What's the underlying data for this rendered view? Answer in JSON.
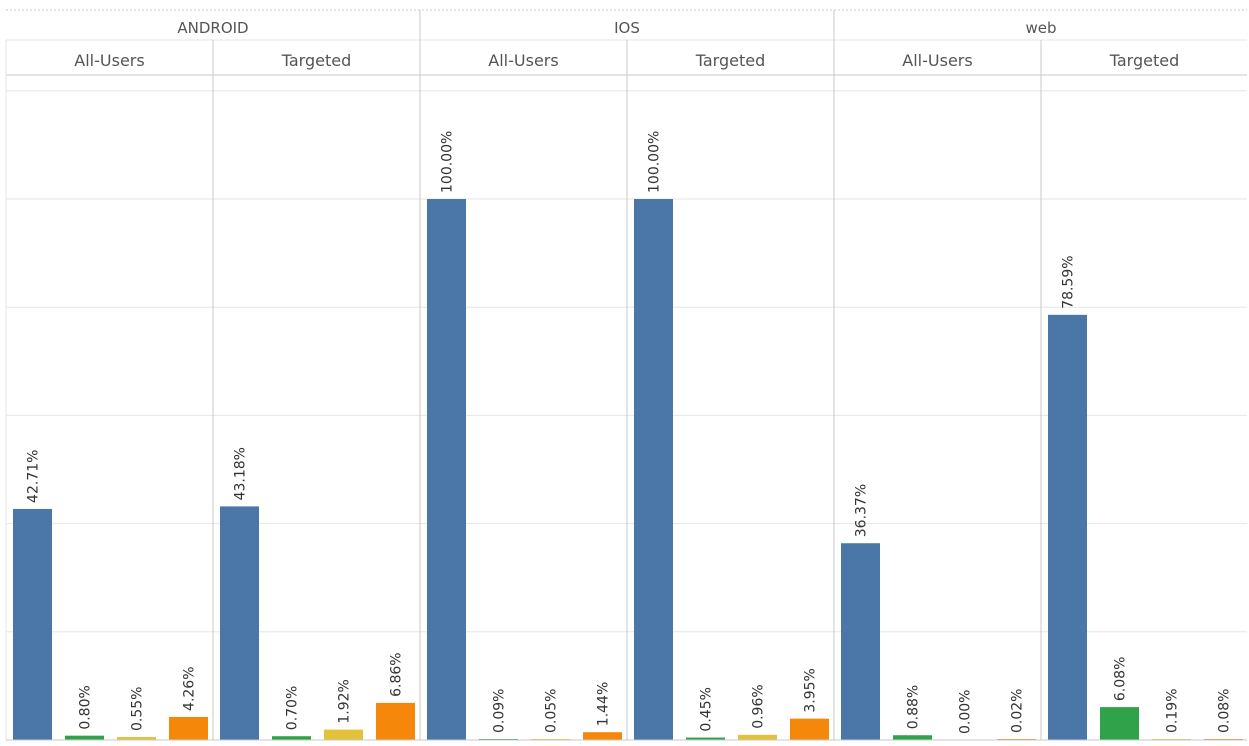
{
  "colors": {
    "blue": "#4a76a8",
    "green": "#2fa24a",
    "yellow": "#e3c23a",
    "orange": "#f5870a",
    "grid": "#e6e6e6",
    "divider": "#c8c8c8"
  },
  "chart_data": {
    "type": "bar",
    "ylim": [
      0,
      120
    ],
    "gridlines": [
      0,
      20,
      40,
      60,
      80,
      100,
      120
    ],
    "platforms": [
      {
        "name": "ANDROID",
        "groups": [
          {
            "name": "All-Users",
            "values": [
              42.71,
              0.8,
              0.55,
              4.26
            ],
            "labels": [
              "42.71%",
              "0.80%",
              "0.55%",
              "4.26%"
            ]
          },
          {
            "name": "Targeted",
            "values": [
              43.18,
              0.7,
              1.92,
              6.86
            ],
            "labels": [
              "43.18%",
              "0.70%",
              "1.92%",
              "6.86%"
            ]
          }
        ]
      },
      {
        "name": "IOS",
        "groups": [
          {
            "name": "All-Users",
            "values": [
              100.0,
              0.09,
              0.05,
              1.44
            ],
            "labels": [
              "100.00%",
              "0.09%",
              "0.05%",
              "1.44%"
            ]
          },
          {
            "name": "Targeted",
            "values": [
              100.0,
              0.45,
              0.96,
              3.95
            ],
            "labels": [
              "100.00%",
              "0.45%",
              "0.96%",
              "3.95%"
            ]
          }
        ]
      },
      {
        "name": "web",
        "groups": [
          {
            "name": "All-Users",
            "values": [
              36.37,
              0.88,
              0.0,
              0.02
            ],
            "labels": [
              "36.37%",
              "0.88%",
              "0.00%",
              "0.02%"
            ]
          },
          {
            "name": "Targeted",
            "values": [
              78.59,
              6.08,
              0.19,
              0.08
            ],
            "labels": [
              "78.59%",
              "6.08%",
              "0.19%",
              "0.08%"
            ]
          }
        ]
      }
    ]
  }
}
